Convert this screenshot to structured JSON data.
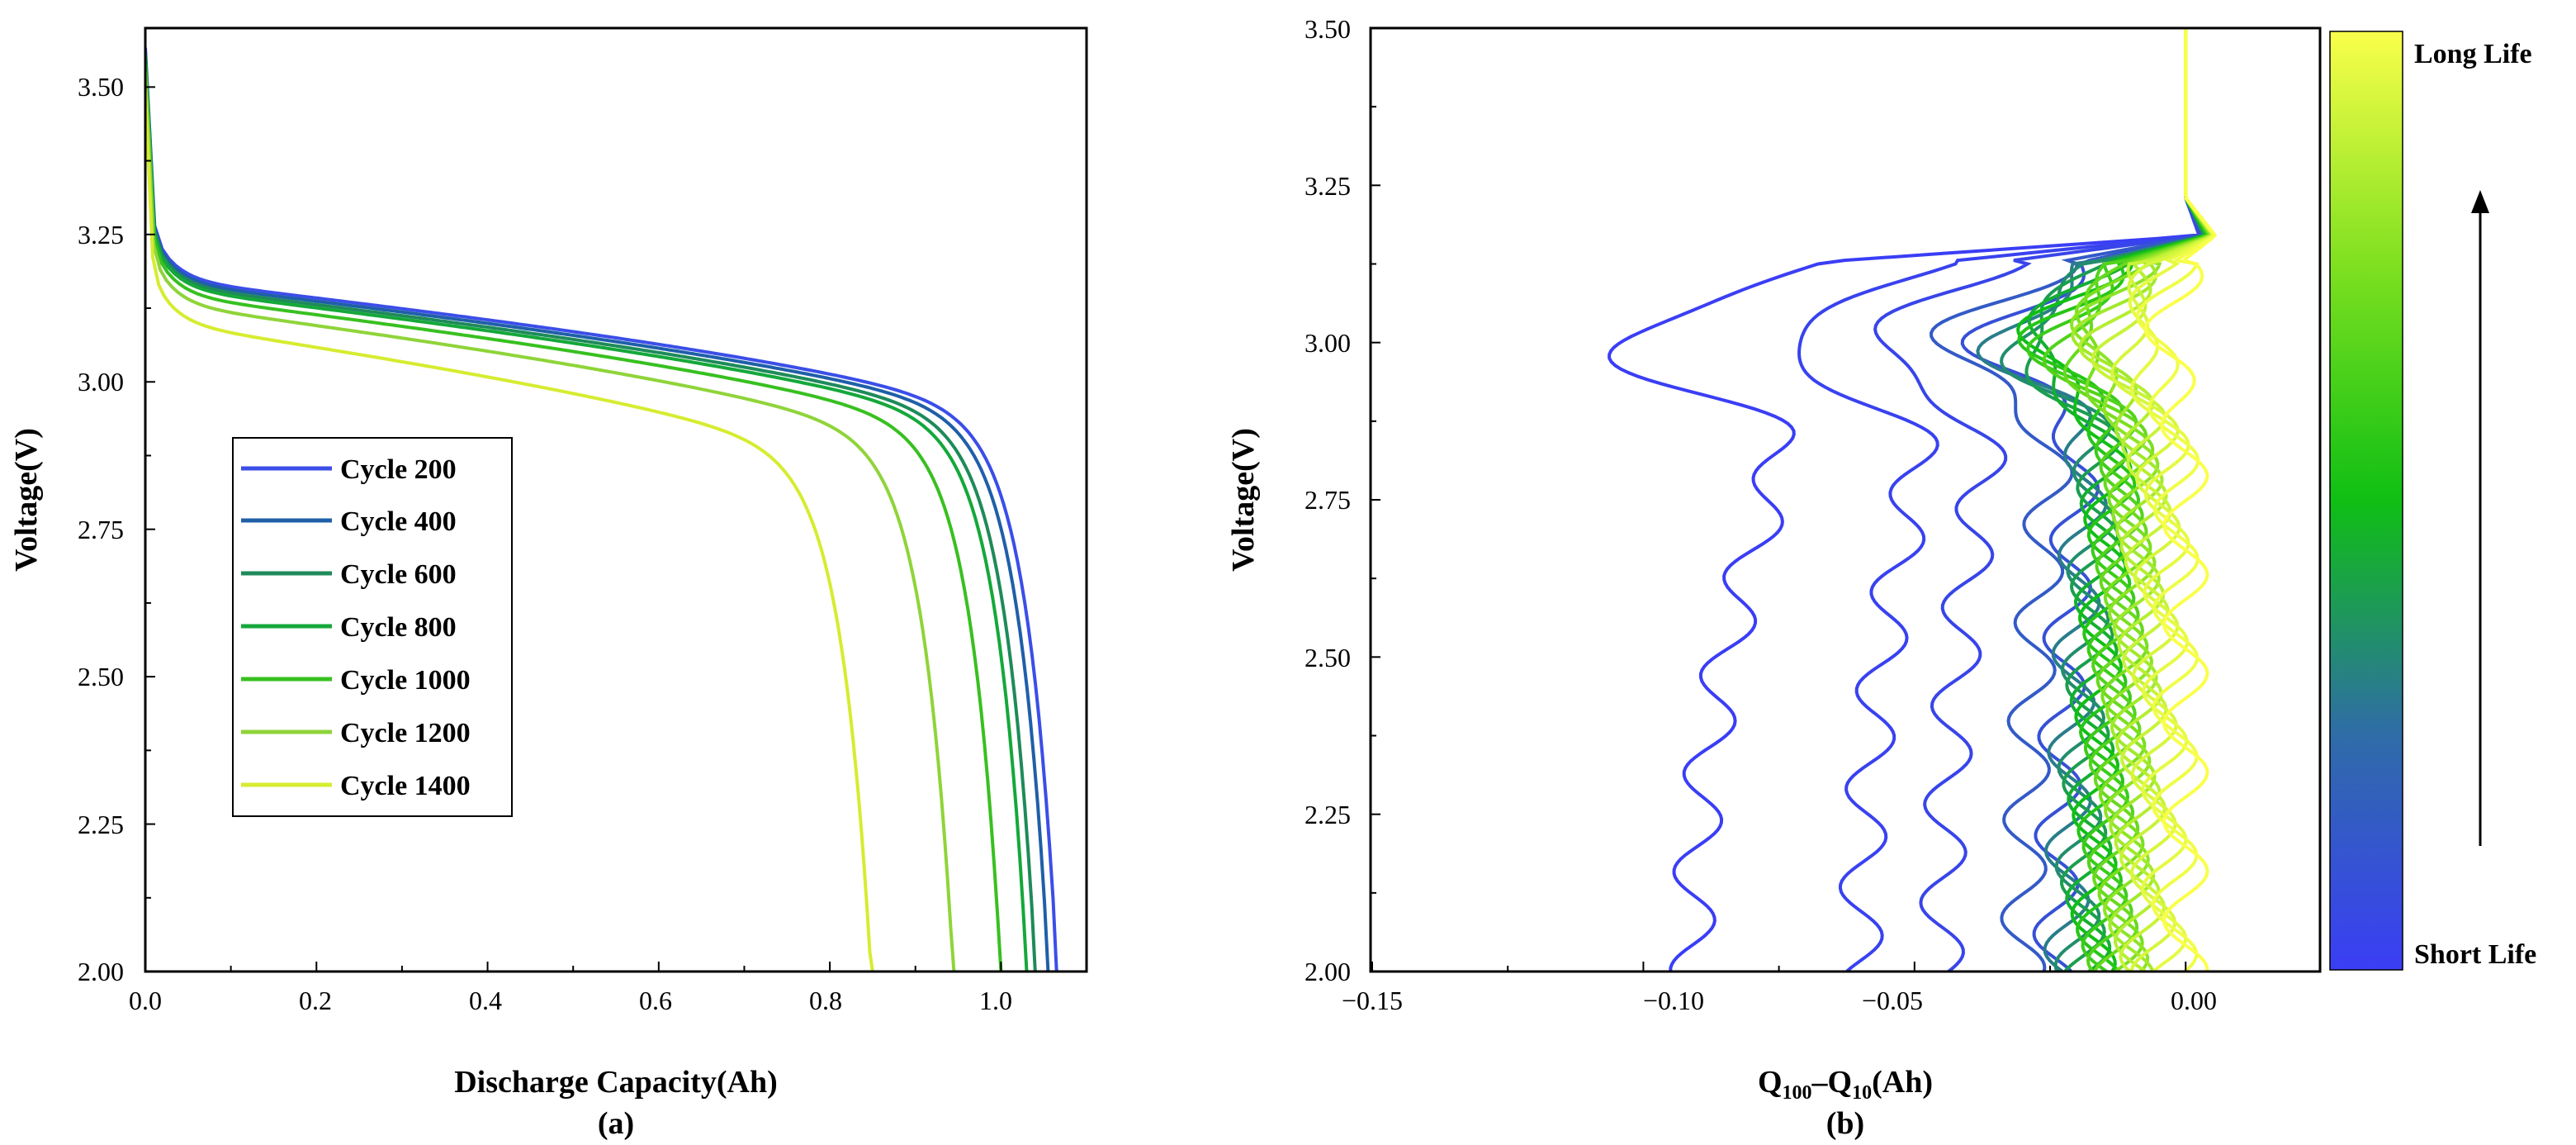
{
  "chart_data": [
    {
      "panel": "(a)",
      "type": "line",
      "title": "",
      "xlabel": "Discharge Capacity(Ah)",
      "ylabel": "Voltage(V)",
      "xlim": [
        0,
        1.1
      ],
      "ylim": [
        2.0,
        3.6
      ],
      "xticks": [
        "0.0",
        "0.2",
        "0.4",
        "0.6",
        "0.8",
        "1.0"
      ],
      "yticks": [
        "2.00",
        "2.25",
        "2.50",
        "2.75",
        "3.00",
        "3.25",
        "3.50"
      ],
      "legend_position": "center-left",
      "series": [
        {
          "name": "Cycle 200",
          "color": "#3b4ee8",
          "capacity": 1.065,
          "plateau": 3.07
        },
        {
          "name": "Cycle 400",
          "color": "#1f5fa8",
          "capacity": 1.055,
          "plateau": 3.065
        },
        {
          "name": "Cycle 600",
          "color": "#1e8a5a",
          "capacity": 1.04,
          "plateau": 3.06
        },
        {
          "name": "Cycle 800",
          "color": "#14a83a",
          "capacity": 1.03,
          "plateau": 3.055
        },
        {
          "name": "Cycle 1000",
          "color": "#38c020",
          "capacity": 1.0,
          "plateau": 3.045
        },
        {
          "name": "Cycle 1200",
          "color": "#8fd43a",
          "capacity": 0.945,
          "plateau": 3.03
        },
        {
          "name": "Cycle 1400",
          "color": "#d6ec30",
          "capacity": 0.85,
          "plateau": 3.0
        }
      ]
    },
    {
      "panel": "(b)",
      "type": "line",
      "title": "",
      "xlabel": "Q100–Q10(Ah)",
      "xlabel_parts": {
        "q": "Q",
        "sub1": "100",
        "dash": "–Q",
        "sub2": "10",
        "unit": "(Ah)"
      },
      "ylabel": "Voltage(V)",
      "xlim": [
        -0.15,
        0.025
      ],
      "ylim": [
        2.0,
        3.5
      ],
      "xticks": [
        "−0.15",
        "−0.10",
        "−0.05",
        "0.00"
      ],
      "yticks": [
        "2.00",
        "2.25",
        "2.50",
        "2.75",
        "3.00",
        "3.25",
        "3.50"
      ],
      "colorbar": {
        "top_label": "Long Life",
        "bottom_label": "Short Life",
        "colors": [
          "#3a3ef5",
          "#2f6ca8",
          "#0fbf14",
          "#7ee020",
          "#faff4a"
        ]
      },
      "curves": [
        {
          "base": -0.091,
          "amplitude": -0.045,
          "life": 0.0
        },
        {
          "base": -0.06,
          "amplitude": -0.035,
          "life": 0.02
        },
        {
          "base": -0.045,
          "amplitude": -0.028,
          "life": 0.04
        },
        {
          "base": -0.03,
          "amplitude": -0.025,
          "life": 0.15
        },
        {
          "base": -0.024,
          "amplitude": -0.022,
          "life": 0.1
        },
        {
          "base": -0.022,
          "amplitude": -0.021,
          "life": 0.3
        },
        {
          "base": -0.02,
          "amplitude": -0.02,
          "life": 0.35
        },
        {
          "base": -0.019,
          "amplitude": -0.019,
          "life": 0.4
        },
        {
          "base": -0.018,
          "amplitude": -0.018,
          "life": 0.45
        },
        {
          "base": -0.017,
          "amplitude": -0.018,
          "life": 0.5
        },
        {
          "base": -0.016,
          "amplitude": -0.017,
          "life": 0.55
        },
        {
          "base": -0.015,
          "amplitude": -0.016,
          "life": 0.6
        },
        {
          "base": -0.014,
          "amplitude": -0.015,
          "life": 0.65
        },
        {
          "base": -0.013,
          "amplitude": -0.014,
          "life": 0.7
        },
        {
          "base": -0.012,
          "amplitude": -0.013,
          "life": 0.74
        },
        {
          "base": -0.011,
          "amplitude": -0.012,
          "life": 0.78
        },
        {
          "base": -0.01,
          "amplitude": -0.011,
          "life": 0.82
        },
        {
          "base": -0.009,
          "amplitude": -0.01,
          "life": 0.86
        },
        {
          "base": -0.008,
          "amplitude": -0.009,
          "life": 0.9
        },
        {
          "base": -0.006,
          "amplitude": -0.008,
          "life": 0.93
        },
        {
          "base": -0.004,
          "amplitude": -0.007,
          "life": 0.96
        },
        {
          "base": -0.002,
          "amplitude": -0.005,
          "life": 0.98
        },
        {
          "base": 0.0,
          "amplitude": -0.004,
          "life": 1.0
        }
      ]
    }
  ]
}
